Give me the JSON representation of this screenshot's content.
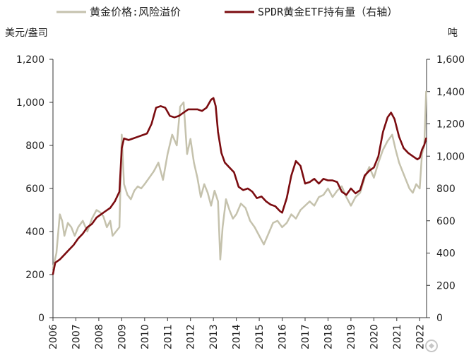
{
  "chart_data": {
    "type": "line",
    "left_unit": "美元/盎司",
    "right_unit": "吨",
    "x_ticks": [
      "2006",
      "2007",
      "2008",
      "2009",
      "2010",
      "2011",
      "2012",
      "2013",
      "2014",
      "2015",
      "2016",
      "2017",
      "2018",
      "2019",
      "2020",
      "2021",
      "2022"
    ],
    "x_range": [
      2006.0,
      2022.3
    ],
    "y_left": {
      "range": [
        0,
        1200
      ],
      "ticks": [
        0,
        200,
        400,
        600,
        800,
        1000,
        1200
      ],
      "tick_labels": [
        "0",
        "200",
        "400",
        "600",
        "800",
        "1,000",
        "1,200"
      ]
    },
    "y_right": {
      "range": [
        0,
        1600
      ],
      "ticks": [
        0,
        200,
        400,
        600,
        800,
        1000,
        1200,
        1400,
        1600
      ],
      "tick_labels": [
        "0",
        "200",
        "400",
        "600",
        "800",
        "1,000",
        "1,200",
        "1,400",
        "1,600"
      ]
    },
    "legend_position": "top",
    "grid": false,
    "series": [
      {
        "name": "黄金价格:风险溢价",
        "axis": "left",
        "color": "#c5c2ad",
        "points": [
          [
            2006.0,
            230
          ],
          [
            2006.15,
            300
          ],
          [
            2006.3,
            480
          ],
          [
            2006.4,
            450
          ],
          [
            2006.5,
            380
          ],
          [
            2006.65,
            440
          ],
          [
            2006.8,
            420
          ],
          [
            2006.95,
            380
          ],
          [
            2007.1,
            420
          ],
          [
            2007.3,
            450
          ],
          [
            2007.5,
            400
          ],
          [
            2007.7,
            460
          ],
          [
            2007.9,
            500
          ],
          [
            2008.05,
            490
          ],
          [
            2008.2,
            470
          ],
          [
            2008.35,
            420
          ],
          [
            2008.5,
            450
          ],
          [
            2008.6,
            380
          ],
          [
            2008.75,
            400
          ],
          [
            2008.9,
            420
          ],
          [
            2009.0,
            850
          ],
          [
            2009.1,
            620
          ],
          [
            2009.25,
            570
          ],
          [
            2009.4,
            550
          ],
          [
            2009.55,
            590
          ],
          [
            2009.7,
            610
          ],
          [
            2009.85,
            600
          ],
          [
            2010.0,
            620
          ],
          [
            2010.2,
            650
          ],
          [
            2010.4,
            680
          ],
          [
            2010.6,
            720
          ],
          [
            2010.8,
            640
          ],
          [
            2011.0,
            760
          ],
          [
            2011.2,
            850
          ],
          [
            2011.4,
            800
          ],
          [
            2011.55,
            980
          ],
          [
            2011.7,
            1000
          ],
          [
            2011.85,
            760
          ],
          [
            2012.0,
            830
          ],
          [
            2012.15,
            720
          ],
          [
            2012.3,
            650
          ],
          [
            2012.45,
            560
          ],
          [
            2012.6,
            620
          ],
          [
            2012.75,
            580
          ],
          [
            2012.9,
            520
          ],
          [
            2013.05,
            590
          ],
          [
            2013.2,
            540
          ],
          [
            2013.3,
            270
          ],
          [
            2013.4,
            420
          ],
          [
            2013.55,
            550
          ],
          [
            2013.7,
            500
          ],
          [
            2013.85,
            460
          ],
          [
            2014.0,
            480
          ],
          [
            2014.2,
            530
          ],
          [
            2014.4,
            510
          ],
          [
            2014.6,
            450
          ],
          [
            2014.8,
            420
          ],
          [
            2015.0,
            380
          ],
          [
            2015.2,
            340
          ],
          [
            2015.4,
            390
          ],
          [
            2015.6,
            440
          ],
          [
            2015.8,
            450
          ],
          [
            2016.0,
            420
          ],
          [
            2016.2,
            440
          ],
          [
            2016.4,
            480
          ],
          [
            2016.6,
            460
          ],
          [
            2016.8,
            500
          ],
          [
            2017.0,
            520
          ],
          [
            2017.2,
            540
          ],
          [
            2017.4,
            520
          ],
          [
            2017.6,
            560
          ],
          [
            2017.8,
            570
          ],
          [
            2018.0,
            600
          ],
          [
            2018.2,
            560
          ],
          [
            2018.4,
            590
          ],
          [
            2018.6,
            610
          ],
          [
            2018.8,
            560
          ],
          [
            2019.0,
            520
          ],
          [
            2019.2,
            560
          ],
          [
            2019.4,
            580
          ],
          [
            2019.6,
            650
          ],
          [
            2019.8,
            700
          ],
          [
            2020.0,
            650
          ],
          [
            2020.2,
            720
          ],
          [
            2020.4,
            780
          ],
          [
            2020.6,
            820
          ],
          [
            2020.8,
            850
          ],
          [
            2020.95,
            780
          ],
          [
            2021.1,
            720
          ],
          [
            2021.25,
            680
          ],
          [
            2021.4,
            640
          ],
          [
            2021.55,
            600
          ],
          [
            2021.7,
            580
          ],
          [
            2021.85,
            620
          ],
          [
            2022.0,
            600
          ],
          [
            2022.1,
            760
          ],
          [
            2022.2,
            800
          ],
          [
            2022.28,
            1050
          ]
        ]
      },
      {
        "name": "SPDR黄金ETF持有量（右轴）",
        "axis": "right",
        "color": "#7b0c10",
        "points": [
          [
            2006.0,
            270
          ],
          [
            2006.1,
            340
          ],
          [
            2006.3,
            360
          ],
          [
            2006.5,
            390
          ],
          [
            2006.7,
            420
          ],
          [
            2006.9,
            450
          ],
          [
            2007.1,
            490
          ],
          [
            2007.3,
            520
          ],
          [
            2007.5,
            560
          ],
          [
            2007.7,
            580
          ],
          [
            2007.9,
            620
          ],
          [
            2008.1,
            640
          ],
          [
            2008.3,
            660
          ],
          [
            2008.5,
            680
          ],
          [
            2008.7,
            720
          ],
          [
            2008.9,
            780
          ],
          [
            2009.0,
            1050
          ],
          [
            2009.1,
            1110
          ],
          [
            2009.3,
            1100
          ],
          [
            2009.5,
            1110
          ],
          [
            2009.7,
            1120
          ],
          [
            2009.9,
            1130
          ],
          [
            2010.1,
            1140
          ],
          [
            2010.3,
            1200
          ],
          [
            2010.5,
            1300
          ],
          [
            2010.7,
            1310
          ],
          [
            2010.9,
            1300
          ],
          [
            2011.1,
            1250
          ],
          [
            2011.3,
            1240
          ],
          [
            2011.5,
            1250
          ],
          [
            2011.7,
            1270
          ],
          [
            2011.9,
            1290
          ],
          [
            2012.1,
            1290
          ],
          [
            2012.3,
            1290
          ],
          [
            2012.5,
            1280
          ],
          [
            2012.7,
            1300
          ],
          [
            2012.9,
            1350
          ],
          [
            2013.0,
            1360
          ],
          [
            2013.1,
            1310
          ],
          [
            2013.2,
            1150
          ],
          [
            2013.35,
            1020
          ],
          [
            2013.5,
            960
          ],
          [
            2013.7,
            930
          ],
          [
            2013.9,
            900
          ],
          [
            2014.1,
            810
          ],
          [
            2014.3,
            790
          ],
          [
            2014.5,
            800
          ],
          [
            2014.7,
            780
          ],
          [
            2014.9,
            740
          ],
          [
            2015.1,
            750
          ],
          [
            2015.3,
            720
          ],
          [
            2015.5,
            700
          ],
          [
            2015.7,
            690
          ],
          [
            2015.9,
            660
          ],
          [
            2016.0,
            650
          ],
          [
            2016.2,
            740
          ],
          [
            2016.4,
            880
          ],
          [
            2016.6,
            970
          ],
          [
            2016.8,
            940
          ],
          [
            2017.0,
            830
          ],
          [
            2017.2,
            840
          ],
          [
            2017.4,
            860
          ],
          [
            2017.6,
            830
          ],
          [
            2017.8,
            860
          ],
          [
            2018.0,
            850
          ],
          [
            2018.2,
            850
          ],
          [
            2018.4,
            840
          ],
          [
            2018.6,
            780
          ],
          [
            2018.8,
            760
          ],
          [
            2019.0,
            800
          ],
          [
            2019.2,
            770
          ],
          [
            2019.4,
            790
          ],
          [
            2019.6,
            880
          ],
          [
            2019.8,
            910
          ],
          [
            2020.0,
            930
          ],
          [
            2020.2,
            1000
          ],
          [
            2020.4,
            1150
          ],
          [
            2020.6,
            1240
          ],
          [
            2020.75,
            1270
          ],
          [
            2020.9,
            1230
          ],
          [
            2021.1,
            1120
          ],
          [
            2021.3,
            1050
          ],
          [
            2021.5,
            1020
          ],
          [
            2021.7,
            1000
          ],
          [
            2021.9,
            980
          ],
          [
            2022.0,
            990
          ],
          [
            2022.1,
            1040
          ],
          [
            2022.2,
            1070
          ],
          [
            2022.28,
            1110
          ]
        ]
      }
    ]
  }
}
